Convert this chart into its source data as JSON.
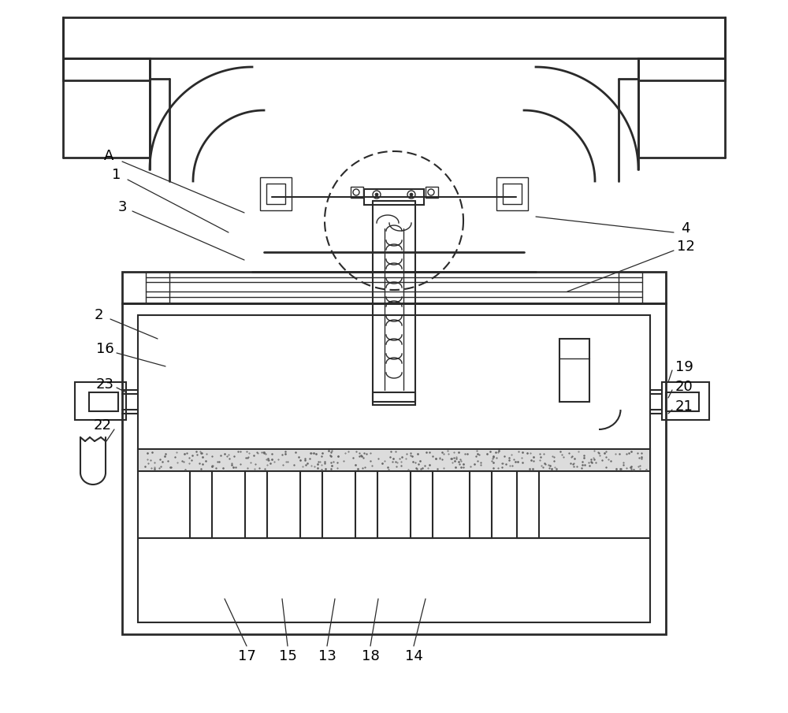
{
  "bg_color": "#ffffff",
  "line_color": "#2a2a2a",
  "ann_color": "#2a2a2a",
  "lw_thick": 2.0,
  "lw_main": 1.5,
  "lw_thin": 1.0,
  "lw_ann": 0.9
}
